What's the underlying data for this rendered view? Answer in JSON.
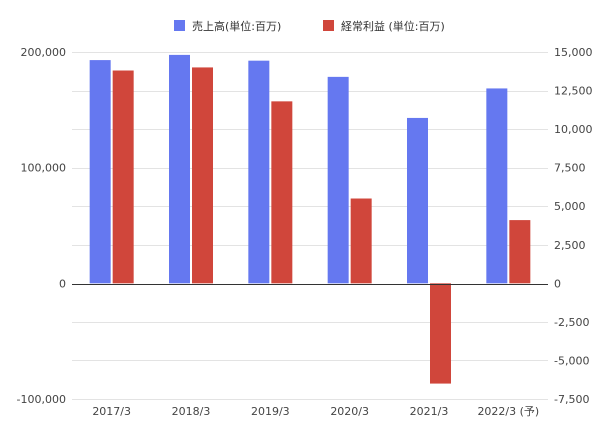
{
  "chart_data": {
    "type": "bar",
    "categories": [
      "2017/3",
      "2018/3",
      "2019/3",
      "2020/3",
      "2021/3",
      "2022/3 (予)"
    ],
    "series": [
      {
        "name": "売上高(単位:百万)",
        "axis": "left",
        "color": "#6578f0",
        "values": [
          193000,
          197500,
          192500,
          178500,
          143000,
          168500
        ]
      },
      {
        "name": "経常利益 (単位:百万)",
        "axis": "right",
        "color": "#d0463b",
        "values": [
          13800,
          14000,
          11800,
          5500,
          -6500,
          4100
        ]
      }
    ],
    "left_axis": {
      "ylim": [
        -100000,
        200000
      ],
      "ticks": [
        -100000,
        0,
        100000,
        200000
      ],
      "tick_labels": [
        "-100,000",
        "0",
        "100,000",
        "200,000"
      ]
    },
    "right_axis": {
      "ylim": [
        -7500,
        15000
      ],
      "ticks": [
        -7500,
        -5000,
        -2500,
        0,
        2500,
        5000,
        7500,
        10000,
        12500,
        15000
      ],
      "tick_labels": [
        "-7,500",
        "-5,000",
        "-2,500",
        "0",
        "2,500",
        "5,000",
        "7,500",
        "10,000",
        "12,500",
        "15,000"
      ]
    },
    "title": "",
    "xlabel": "",
    "ylabel": "",
    "grid": true,
    "legend_position": "top-center"
  }
}
